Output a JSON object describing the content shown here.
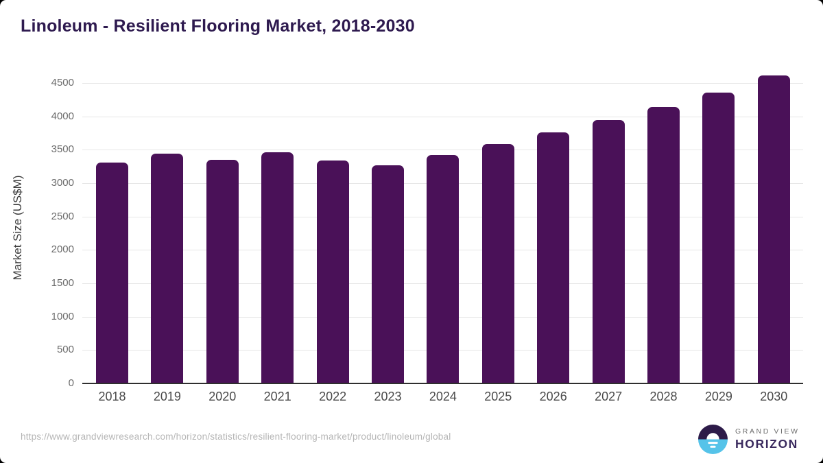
{
  "page": {
    "title": "Linoleum - Resilient Flooring Market, 2018-2030"
  },
  "chart_data": {
    "type": "bar",
    "title": "Linoleum - Resilient Flooring Market, 2018-2030",
    "xlabel": "",
    "ylabel": "Market Size (US$M)",
    "categories": [
      "2018",
      "2019",
      "2020",
      "2021",
      "2022",
      "2023",
      "2024",
      "2025",
      "2026",
      "2027",
      "2028",
      "2029",
      "2030"
    ],
    "values": [
      3300,
      3430,
      3335,
      3455,
      3330,
      3260,
      3415,
      3580,
      3750,
      3940,
      4130,
      4350,
      4605
    ],
    "ylim": [
      0,
      4500
    ],
    "yticks": [
      0,
      500,
      1000,
      1500,
      2000,
      2500,
      3000,
      3500,
      4000,
      4500
    ],
    "grid": true,
    "legend": "none",
    "bar_color": "#4a1158"
  },
  "footer": {
    "source_url": "https://www.grandviewresearch.com/horizon/statistics/resilient-flooring-market/product/linoleum/global",
    "logo": {
      "top_text": "GRAND VIEW",
      "bottom_text": "HORIZON"
    }
  },
  "colors": {
    "title": "#2e1a4f",
    "bar": "#4a1158",
    "axis_line": "#2f2f2f",
    "gridline": "#e6e6e6",
    "tick_label": "#6b6b6b",
    "year_label": "#4a4a4a",
    "url_text": "#b5b5b5",
    "logo_dark": "#2d1b49",
    "logo_blue": "#55c3e9",
    "logo_text_gray": "#6d6d6d",
    "logo_text_purple": "#3a2a5e"
  }
}
